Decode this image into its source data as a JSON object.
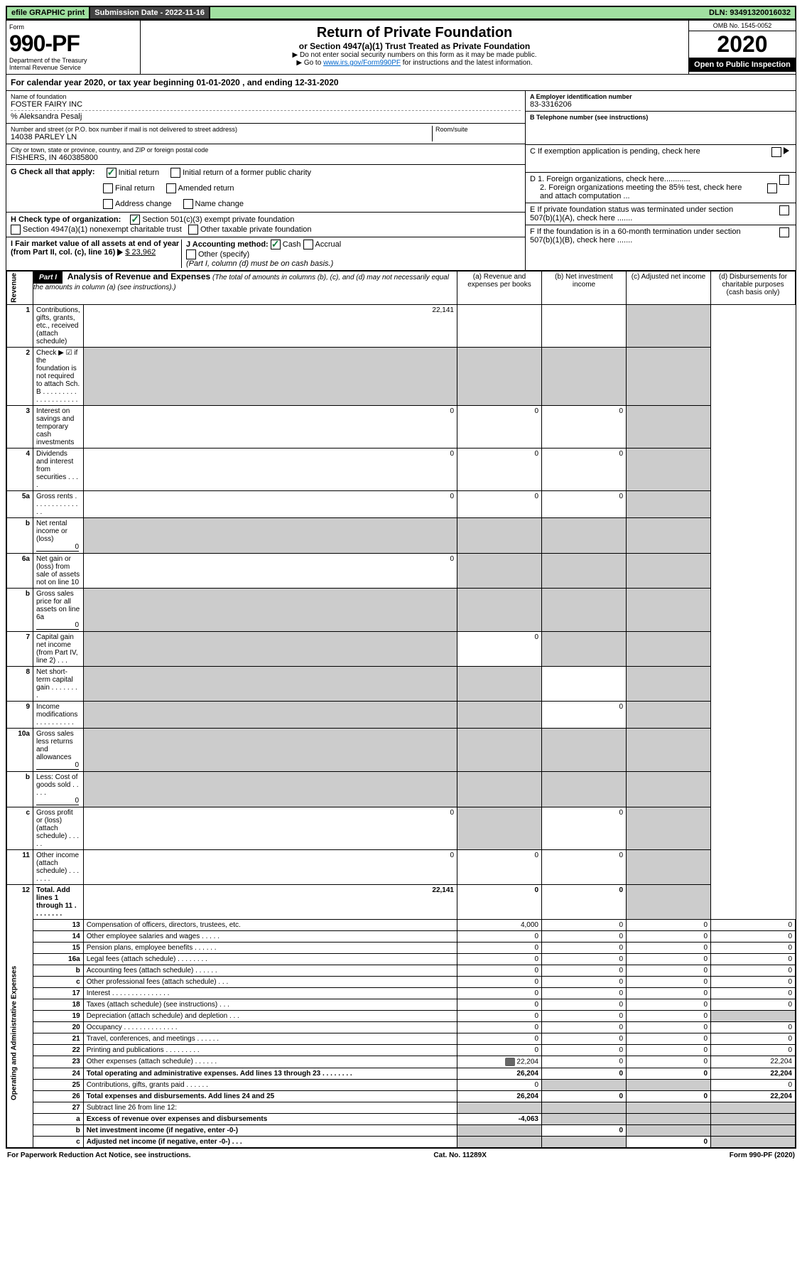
{
  "top": {
    "efile": "efile GRAPHIC print",
    "sub_date_lbl": "Submission Date - 2022-11-16",
    "dln": "DLN: 93491320016032"
  },
  "header": {
    "form_lbl": "Form",
    "form_num": "990-PF",
    "dept": "Department of the Treasury",
    "irs": "Internal Revenue Service",
    "title": "Return of Private Foundation",
    "subtitle": "or Section 4947(a)(1) Trust Treated as Private Foundation",
    "note1": "▶ Do not enter social security numbers on this form as it may be made public.",
    "note2_pre": "▶ Go to ",
    "note2_link": "www.irs.gov/Form990PF",
    "note2_post": " for instructions and the latest information.",
    "omb": "OMB No. 1545-0052",
    "year": "2020",
    "open": "Open to Public Inspection"
  },
  "calyear": "For calendar year 2020, or tax year beginning 01-01-2020 , and ending 12-31-2020",
  "entity": {
    "name_lbl": "Name of foundation",
    "name": "FOSTER FAIRY INC",
    "co": "% Aleksandra Pesalj",
    "addr_lbl": "Number and street (or P.O. box number if mail is not delivered to street address)",
    "addr": "14038 PARLEY LN",
    "room_lbl": "Room/suite",
    "city_lbl": "City or town, state or province, country, and ZIP or foreign postal code",
    "city": "FISHERS, IN 460385800"
  },
  "ein": {
    "a_lbl": "A Employer identification number",
    "a_val": "83-3316206",
    "b_lbl": "B Telephone number (see instructions)",
    "c_lbl": "C If exemption application is pending, check here",
    "d1": "D 1. Foreign organizations, check here............",
    "d2": "2. Foreign organizations meeting the 85% test, check here and attach computation ...",
    "e_lbl": "E If private foundation status was terminated under section 507(b)(1)(A), check here .......",
    "f_lbl": "F If the foundation is in a 60-month termination under section 507(b)(1)(B), check here ......."
  },
  "checks": {
    "g_lbl": "G Check all that apply:",
    "initial": "Initial return",
    "initial_former": "Initial return of a former public charity",
    "final": "Final return",
    "amended": "Amended return",
    "addr_change": "Address change",
    "name_change": "Name change",
    "h_lbl": "H Check type of organization:",
    "h_501": "Section 501(c)(3) exempt private foundation",
    "h_4947": "Section 4947(a)(1) nonexempt charitable trust",
    "h_other": "Other taxable private foundation",
    "i_lbl": "I Fair market value of all assets at end of year (from Part II, col. (c), line 16)",
    "i_val": "$ 23,962",
    "j_lbl": "J Accounting method:",
    "j_cash": "Cash",
    "j_accrual": "Accrual",
    "j_other": "Other (specify)",
    "j_note": "(Part I, column (d) must be on cash basis.)"
  },
  "part1": {
    "hdr": "Part I",
    "title": "Analysis of Revenue and Expenses",
    "desc": "(The total of amounts in columns (b), (c), and (d) may not necessarily equal the amounts in column (a) (see instructions).)",
    "cols": {
      "a": "(a) Revenue and expenses per books",
      "b": "(b) Net investment income",
      "c": "(c) Adjusted net income",
      "d": "(d) Disbursements for charitable purposes (cash basis only)"
    },
    "sections": {
      "rev": "Revenue",
      "exp": "Operating and Administrative Expenses"
    },
    "rows": [
      {
        "n": "1",
        "l": "Contributions, gifts, grants, etc., received (attach schedule)",
        "a": "22,141",
        "dgrey": true
      },
      {
        "n": "2",
        "l": "Check ▶ ☑ if the foundation is not required to attach Sch. B . . . . . . . . . . . . . . . . . . . .",
        "allgrey": true
      },
      {
        "n": "3",
        "l": "Interest on savings and temporary cash investments",
        "a": "0",
        "b": "0",
        "c": "0",
        "dgrey": true
      },
      {
        "n": "4",
        "l": "Dividends and interest from securities . . . .",
        "a": "0",
        "b": "0",
        "c": "0",
        "dgrey": true
      },
      {
        "n": "5a",
        "l": "Gross rents . . . . . . . . . . . . . .",
        "a": "0",
        "b": "0",
        "c": "0",
        "dgrey": true
      },
      {
        "n": "b",
        "l": "Net rental income or (loss)",
        "inline": "0",
        "allgrey_after": true
      },
      {
        "n": "6a",
        "l": "Net gain or (loss) from sale of assets not on line 10",
        "a": "0",
        "bcgrey": true,
        "dgrey": true
      },
      {
        "n": "b",
        "l": "Gross sales price for all assets on line 6a",
        "inline": "0",
        "allgrey_after": true
      },
      {
        "n": "7",
        "l": "Capital gain net income (from Part IV, line 2) . . .",
        "agrey": true,
        "b": "0",
        "cgrey": true,
        "dgrey": true
      },
      {
        "n": "8",
        "l": "Net short-term capital gain . . . . . . . .",
        "abgrey": true,
        "c": "",
        "dgrey": true
      },
      {
        "n": "9",
        "l": "Income modifications . . . . . . . . . .",
        "abgrey": true,
        "c": "0",
        "dgrey": true
      },
      {
        "n": "10a",
        "l": "Gross sales less returns and allowances",
        "inline": "0",
        "allgrey_after": true
      },
      {
        "n": "b",
        "l": "Less: Cost of goods sold . . . . .",
        "inline": "0",
        "allgrey_after": true
      },
      {
        "n": "c",
        "l": "Gross profit or (loss) (attach schedule) . . . . .",
        "a": "0",
        "bgrey": true,
        "c": "0",
        "dgrey": true
      },
      {
        "n": "11",
        "l": "Other income (attach schedule) . . . . . . .",
        "a": "0",
        "b": "0",
        "c": "0",
        "dgrey": true
      },
      {
        "n": "12",
        "l": "Total. Add lines 1 through 11 . . . . . . . .",
        "a": "22,141",
        "b": "0",
        "c": "0",
        "dgrey": true,
        "bold": true
      },
      {
        "n": "13",
        "l": "Compensation of officers, directors, trustees, etc.",
        "a": "4,000",
        "b": "0",
        "c": "0",
        "d": "0",
        "sec": "exp"
      },
      {
        "n": "14",
        "l": "Other employee salaries and wages . . . . .",
        "a": "0",
        "b": "0",
        "c": "0",
        "d": "0"
      },
      {
        "n": "15",
        "l": "Pension plans, employee benefits . . . . . .",
        "a": "0",
        "b": "0",
        "c": "0",
        "d": "0"
      },
      {
        "n": "16a",
        "l": "Legal fees (attach schedule) . . . . . . . .",
        "a": "0",
        "b": "0",
        "c": "0",
        "d": "0"
      },
      {
        "n": "b",
        "l": "Accounting fees (attach schedule) . . . . . .",
        "a": "0",
        "b": "0",
        "c": "0",
        "d": "0"
      },
      {
        "n": "c",
        "l": "Other professional fees (attach schedule) . . .",
        "a": "0",
        "b": "0",
        "c": "0",
        "d": "0"
      },
      {
        "n": "17",
        "l": "Interest . . . . . . . . . . . . . . .",
        "a": "0",
        "b": "0",
        "c": "0",
        "d": "0"
      },
      {
        "n": "18",
        "l": "Taxes (attach schedule) (see instructions) . . .",
        "a": "0",
        "b": "0",
        "c": "0",
        "d": "0"
      },
      {
        "n": "19",
        "l": "Depreciation (attach schedule) and depletion . . .",
        "a": "0",
        "b": "0",
        "c": "0",
        "dgrey": true
      },
      {
        "n": "20",
        "l": "Occupancy . . . . . . . . . . . . . .",
        "a": "0",
        "b": "0",
        "c": "0",
        "d": "0"
      },
      {
        "n": "21",
        "l": "Travel, conferences, and meetings . . . . . .",
        "a": "0",
        "b": "0",
        "c": "0",
        "d": "0"
      },
      {
        "n": "22",
        "l": "Printing and publications . . . . . . . . .",
        "a": "0",
        "b": "0",
        "c": "0",
        "d": "0"
      },
      {
        "n": "23",
        "l": "Other expenses (attach schedule) . . . . . .",
        "a": "22,204",
        "b": "0",
        "c": "0",
        "d": "22,204",
        "icon": true
      },
      {
        "n": "24",
        "l": "Total operating and administrative expenses. Add lines 13 through 23 . . . . . . . .",
        "a": "26,204",
        "b": "0",
        "c": "0",
        "d": "22,204",
        "bold": true
      },
      {
        "n": "25",
        "l": "Contributions, gifts, grants paid . . . . . .",
        "a": "0",
        "bcgrey": true,
        "d": "0"
      },
      {
        "n": "26",
        "l": "Total expenses and disbursements. Add lines 24 and 25",
        "a": "26,204",
        "b": "0",
        "c": "0",
        "d": "22,204",
        "bold": true
      },
      {
        "n": "27",
        "l": "Subtract line 26 from line 12:",
        "allgrey_after": true
      },
      {
        "n": "a",
        "l": "Excess of revenue over expenses and disbursements",
        "a": "-4,063",
        "bcgrey": true,
        "dgrey": true,
        "bold": true
      },
      {
        "n": "b",
        "l": "Net investment income (if negative, enter -0-)",
        "agrey": true,
        "b": "0",
        "cgrey": true,
        "dgrey": true,
        "bold": true
      },
      {
        "n": "c",
        "l": "Adjusted net income (if negative, enter -0-) . . .",
        "abgrey": true,
        "c": "0",
        "dgrey": true,
        "bold": true
      }
    ]
  },
  "footer": {
    "l": "For Paperwork Reduction Act Notice, see instructions.",
    "m": "Cat. No. 11289X",
    "r": "Form 990-PF (2020)"
  }
}
